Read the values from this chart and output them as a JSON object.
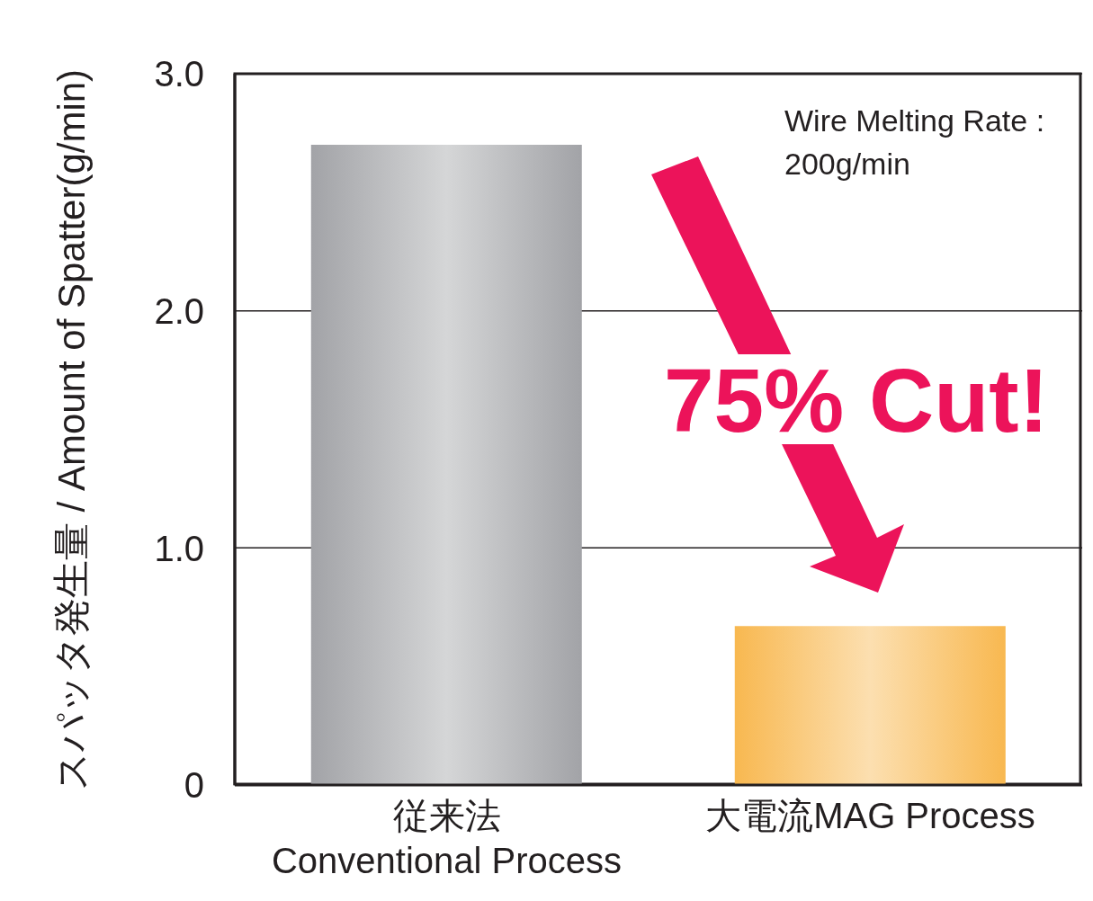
{
  "chart_data": {
    "type": "bar",
    "ylabel": "スパッタ発生量 / Amount of Spatter(g/min)",
    "categories": [
      "従来法\nConventional Process",
      "大電流MAG Process"
    ],
    "values": [
      2.7,
      0.67
    ],
    "colors": [
      "#a2a3a7",
      "#f8b850"
    ],
    "ylim": [
      0,
      3
    ],
    "yticks": [
      {
        "value": 0,
        "label": "0"
      },
      {
        "value": 1,
        "label": "1.0"
      },
      {
        "value": 2,
        "label": "2.0"
      },
      {
        "value": 3,
        "label": "3.0"
      }
    ],
    "grid": "y",
    "annotations": [
      "Wire Melting Rate : 200g/min",
      "75% Cut!"
    ]
  }
}
